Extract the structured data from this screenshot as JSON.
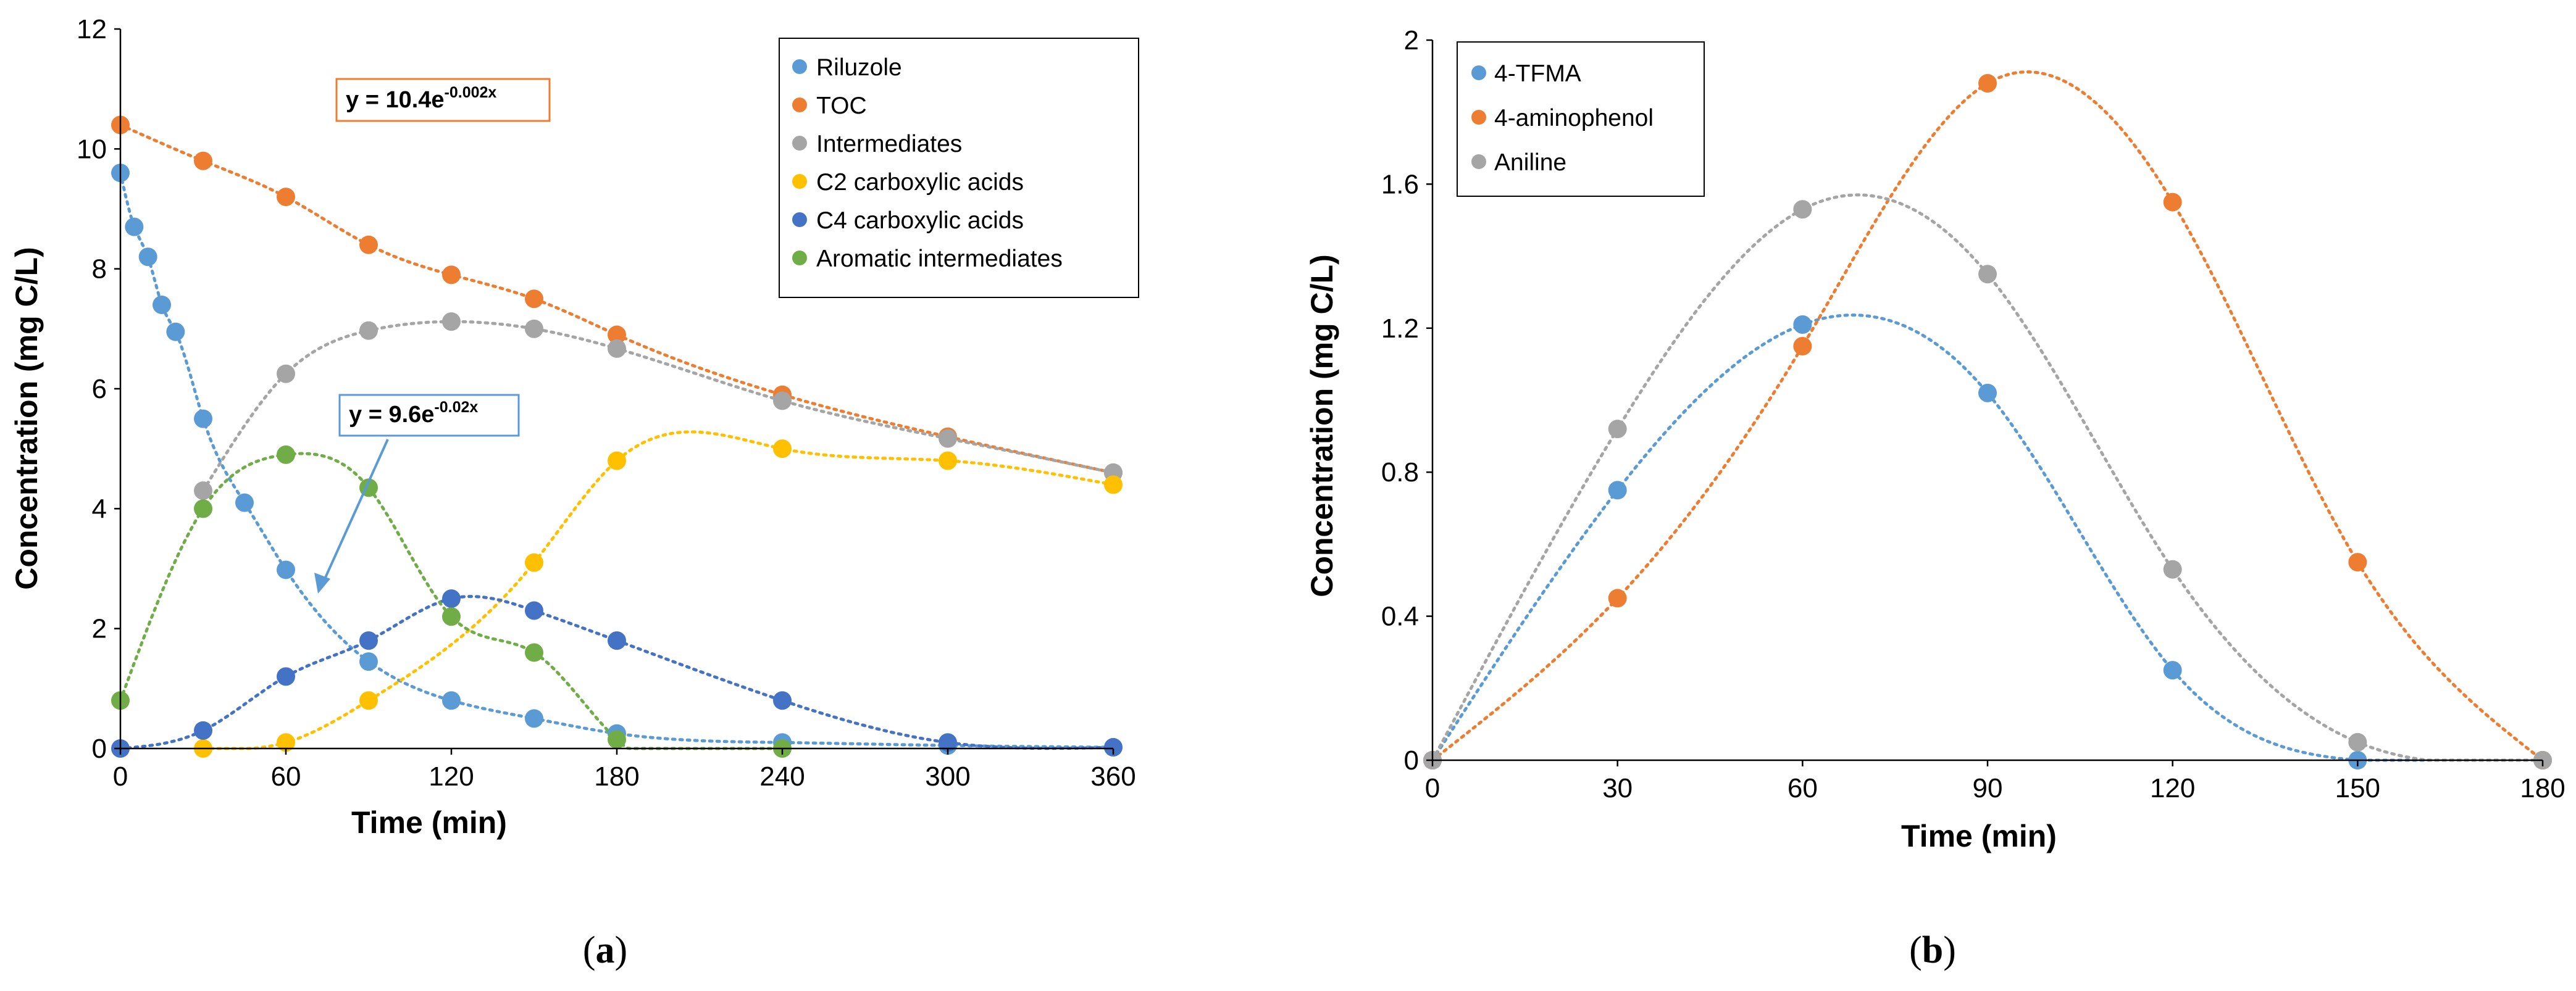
{
  "chart_data": [
    {
      "type": "scatter",
      "panel_label": "a",
      "xlabel": "Time (min)",
      "ylabel": "Concentration (mg C/L)",
      "xlim": [
        0,
        360
      ],
      "ylim": [
        0,
        12
      ],
      "xticks": [
        0,
        60,
        120,
        180,
        240,
        300,
        360
      ],
      "yticks": [
        0,
        2,
        4,
        6,
        8,
        10,
        12
      ],
      "grid": false,
      "legend_position": "top-right",
      "trendlines": "dotted",
      "series": [
        {
          "name": "Riluzole",
          "color": "#5B9BD5",
          "x": [
            0,
            5,
            10,
            15,
            20,
            30,
            45,
            60,
            90,
            120,
            150,
            180,
            240,
            300,
            360
          ],
          "y": [
            9.6,
            8.7,
            8.2,
            7.4,
            6.95,
            5.5,
            4.1,
            2.98,
            1.45,
            0.8,
            0.5,
            0.25,
            0.1,
            0.05,
            0.02
          ]
        },
        {
          "name": "TOC",
          "color": "#ED7D31",
          "x": [
            0,
            30,
            60,
            90,
            120,
            150,
            180,
            240,
            300,
            360
          ],
          "y": [
            10.4,
            9.8,
            9.2,
            8.4,
            7.9,
            7.5,
            6.9,
            5.9,
            5.2,
            4.6
          ]
        },
        {
          "name": "Intermediates",
          "color": "#A5A5A5",
          "x": [
            30,
            60,
            90,
            120,
            150,
            180,
            240,
            300,
            360
          ],
          "y": [
            4.3,
            6.25,
            6.97,
            7.12,
            7.0,
            6.67,
            5.8,
            5.17,
            4.6
          ]
        },
        {
          "name": "C2 carboxylic acids",
          "color": "#FFC000",
          "x": [
            30,
            60,
            90,
            150,
            180,
            240,
            300,
            360
          ],
          "y": [
            0.0,
            0.1,
            0.8,
            3.1,
            4.8,
            5.0,
            4.8,
            4.4
          ]
        },
        {
          "name": "C4 carboxylic acids",
          "color": "#4472C4",
          "x": [
            0,
            30,
            60,
            90,
            120,
            150,
            180,
            240,
            300,
            360
          ],
          "y": [
            0.0,
            0.3,
            1.2,
            1.8,
            2.5,
            2.3,
            1.8,
            0.8,
            0.1,
            0.02
          ]
        },
        {
          "name": "Aromatic intermediates",
          "color": "#70AD47",
          "x": [
            0,
            30,
            60,
            90,
            120,
            150,
            180,
            240
          ],
          "y": [
            0.8,
            4.0,
            4.9,
            4.35,
            2.2,
            1.6,
            0.15,
            0.0
          ]
        }
      ],
      "annotations": [
        {
          "text_main": "y = 10.4e",
          "text_sup": "-0.002x",
          "border_color": "#ED7D31"
        },
        {
          "text_main": "y = 9.6e",
          "text_sup": "-0.02x",
          "border_color": "#5B9BD5"
        }
      ]
    },
    {
      "type": "scatter",
      "panel_label": "b",
      "xlabel": "Time (min)",
      "ylabel": "Concentration (mg C/L)",
      "xlim": [
        0,
        180
      ],
      "ylim": [
        0,
        2
      ],
      "xticks": [
        0,
        30,
        60,
        90,
        120,
        150,
        180
      ],
      "yticks": [
        0,
        0.4,
        0.8,
        1.2,
        1.6,
        2
      ],
      "grid": false,
      "legend_position": "top-left",
      "trendlines": "dotted",
      "series": [
        {
          "name": "4-TFMA",
          "color": "#5B9BD5",
          "x": [
            0,
            30,
            60,
            90,
            120,
            150,
            180
          ],
          "y": [
            0.0,
            0.75,
            1.21,
            1.02,
            0.25,
            0.0,
            0.0
          ]
        },
        {
          "name": "4-aminophenol",
          "color": "#ED7D31",
          "x": [
            0,
            30,
            60,
            90,
            120,
            150,
            180
          ],
          "y": [
            0.0,
            0.45,
            1.15,
            1.88,
            1.55,
            0.55,
            0.0
          ]
        },
        {
          "name": "Aniline",
          "color": "#A5A5A5",
          "x": [
            0,
            30,
            60,
            90,
            120,
            150,
            180
          ],
          "y": [
            0.0,
            0.92,
            1.53,
            1.35,
            0.53,
            0.05,
            0.0
          ]
        }
      ]
    }
  ]
}
